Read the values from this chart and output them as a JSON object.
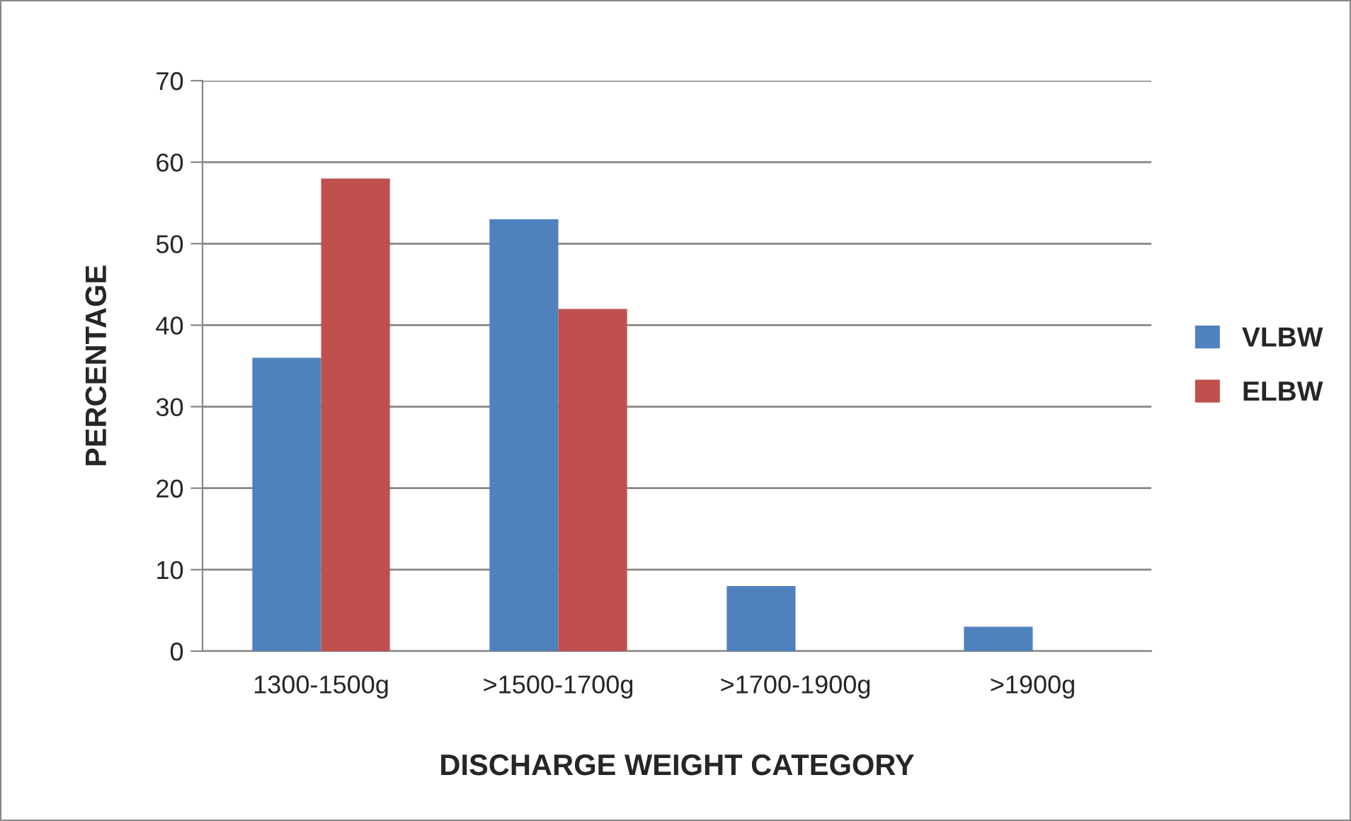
{
  "chart_data": {
    "type": "bar",
    "xlabel": "DISCHARGE WEIGHT CATEGORY",
    "ylabel": "PERCENTAGE",
    "categories": [
      "1300-1500g",
      ">1500-1700g",
      ">1700-1900g",
      ">1900g"
    ],
    "series": [
      {
        "name": "VLBW",
        "color": "#4f81bd",
        "values": [
          36,
          53,
          8,
          3
        ]
      },
      {
        "name": "ELBW",
        "color": "#c0504d",
        "values": [
          58,
          42,
          null,
          null
        ]
      }
    ],
    "ylim": [
      0,
      70
    ],
    "yticks": [
      0,
      10,
      20,
      30,
      40,
      50,
      60,
      70
    ],
    "grid": "y",
    "legend": "right"
  }
}
